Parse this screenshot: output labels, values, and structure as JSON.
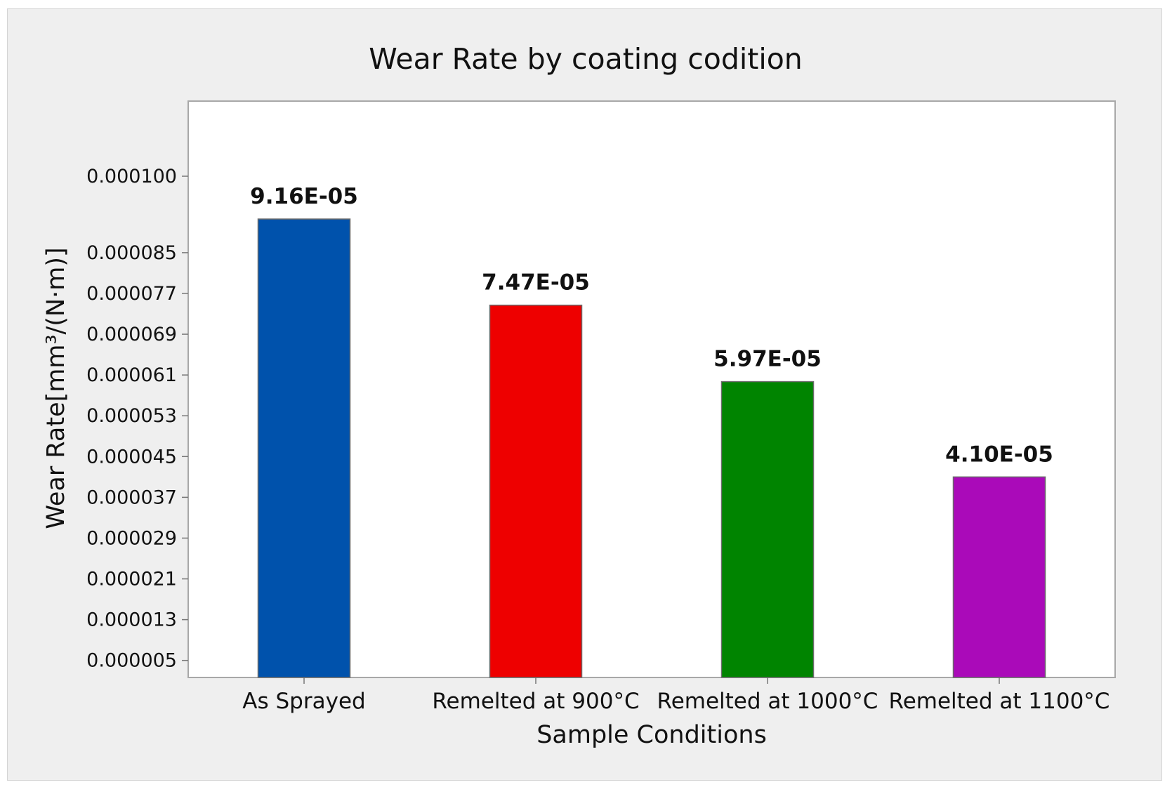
{
  "chart_data": {
    "type": "bar",
    "title": "Wear Rate by coating codition",
    "xlabel": "Sample Conditions",
    "ylabel": "Wear Rate[mm³/(N·m)]",
    "categories": [
      "As Sprayed",
      "Remelted at 900°C",
      "Remelted at 1000°C",
      "Remelted at 1100°C"
    ],
    "values": [
      9.16e-05,
      7.47e-05,
      5.97e-05,
      4.1e-05
    ],
    "data_labels": [
      "9.16E-05",
      "7.47E-05",
      "5.97E-05",
      "4.10E-05"
    ],
    "colors": [
      "#0052ac",
      "#ee0000",
      "#008400",
      "#aa0ab9"
    ],
    "yticks": [
      5e-06,
      1.3e-05,
      2.1e-05,
      2.9e-05,
      3.7e-05,
      4.5e-05,
      5.3e-05,
      6.1e-05,
      6.9e-05,
      7.7e-05,
      8.5e-05,
      0.0001
    ],
    "ytick_labels": [
      "0.000005",
      "0.000013",
      "0.000021",
      "0.000029",
      "0.000037",
      "0.000045",
      "0.000053",
      "0.000061",
      "0.000069",
      "0.000077",
      "0.000085",
      "0.000100"
    ],
    "ylim": [
      0,
      0.000106
    ],
    "grid": false,
    "legend": "none"
  }
}
